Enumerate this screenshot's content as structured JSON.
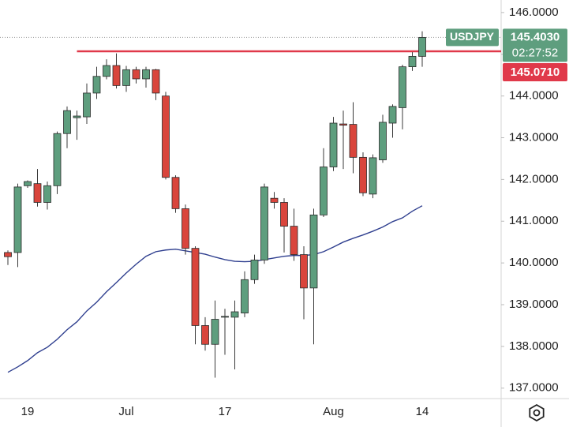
{
  "chart_data": {
    "type": "candlestick",
    "symbol": "USDJPY",
    "countdown": "02:27:52",
    "categories": [
      null,
      null,
      "19",
      null,
      null,
      null,
      null,
      null,
      null,
      null,
      null,
      null,
      "Jul",
      null,
      null,
      null,
      null,
      null,
      null,
      null,
      null,
      null,
      "17",
      null,
      null,
      null,
      null,
      null,
      null,
      null,
      null,
      null,
      null,
      "Aug",
      null,
      null,
      null,
      null,
      null,
      null,
      null,
      null,
      "14"
    ],
    "series": [
      {
        "name": "USDJPY",
        "up_color": "#5e9e7e",
        "down_color": "#d9453c",
        "open": [
          140.25,
          140.25,
          141.85,
          141.9,
          141.45,
          141.85,
          143.1,
          143.48,
          143.5,
          144.07,
          144.47,
          144.73,
          144.25,
          144.63,
          144.41,
          144.63,
          144.0,
          142.05,
          141.3,
          140.35,
          138.5,
          138.05,
          138.7,
          138.7,
          138.8,
          139.6,
          140.07,
          141.55,
          141.45,
          140.88,
          140.2,
          139.4,
          141.15,
          142.3,
          143.33,
          143.32,
          142.53,
          141.65,
          142.47,
          143.35,
          143.72,
          144.7,
          144.95
        ],
        "high": [
          140.3,
          141.9,
          141.98,
          142.25,
          141.95,
          143.15,
          143.75,
          143.65,
          144.3,
          144.7,
          144.88,
          145.02,
          144.72,
          144.7,
          144.7,
          144.65,
          144.1,
          142.1,
          141.4,
          140.4,
          138.7,
          139.1,
          138.9,
          139.1,
          139.8,
          140.2,
          141.9,
          141.7,
          141.55,
          141.3,
          140.4,
          141.3,
          142.75,
          143.5,
          143.65,
          143.85,
          142.65,
          142.6,
          143.55,
          143.8,
          144.75,
          145.05,
          145.55
        ],
        "low": [
          139.95,
          139.9,
          141.8,
          141.35,
          141.28,
          141.65,
          142.75,
          142.95,
          143.33,
          143.93,
          144.4,
          144.18,
          144.1,
          144.3,
          144.2,
          143.9,
          142.0,
          141.2,
          140.2,
          138.05,
          137.9,
          137.25,
          137.8,
          137.45,
          138.7,
          139.5,
          139.98,
          141.3,
          140.25,
          140.05,
          138.65,
          138.05,
          141.1,
          142.2,
          142.25,
          142.15,
          141.6,
          141.55,
          142.4,
          143.0,
          143.2,
          144.6,
          144.7
        ],
        "close": [
          140.15,
          141.82,
          141.95,
          141.45,
          141.85,
          143.1,
          143.65,
          143.52,
          144.07,
          144.47,
          144.73,
          144.25,
          144.63,
          144.41,
          144.63,
          144.07,
          142.05,
          141.3,
          140.35,
          138.5,
          138.05,
          138.65,
          138.72,
          138.83,
          139.6,
          140.07,
          141.82,
          141.45,
          140.88,
          140.2,
          139.4,
          141.15,
          142.3,
          143.35,
          143.3,
          142.53,
          141.68,
          142.52,
          143.37,
          143.75,
          144.7,
          144.95,
          145.403
        ]
      }
    ],
    "moving_average": {
      "color": "#2f3f8f",
      "values": [
        137.38,
        137.51,
        137.66,
        137.85,
        137.98,
        138.17,
        138.4,
        138.59,
        138.85,
        139.06,
        139.31,
        139.53,
        139.76,
        139.97,
        140.16,
        140.27,
        140.31,
        140.33,
        140.29,
        140.25,
        140.21,
        140.14,
        140.08,
        140.04,
        140.03,
        140.04,
        140.08,
        140.12,
        140.16,
        140.18,
        140.18,
        140.2,
        140.27,
        140.38,
        140.5,
        140.59,
        140.67,
        140.76,
        140.86,
        140.99,
        141.08,
        141.24,
        141.37
      ]
    },
    "last_price": {
      "value": 145.403,
      "label": "145.4030",
      "color": "#5e9e7e"
    },
    "resistance": {
      "value": 145.071,
      "label": "145.0710",
      "color": "#e0394a"
    },
    "ylim": [
      136.75,
      146.3
    ],
    "yticks": [
      {
        "value": 137,
        "label": "137.0000"
      },
      {
        "value": 138,
        "label": "138.0000"
      },
      {
        "value": 139,
        "label": "139.0000"
      },
      {
        "value": 140,
        "label": "140.0000"
      },
      {
        "value": 141,
        "label": "141.0000"
      },
      {
        "value": 142,
        "label": "142.0000"
      },
      {
        "value": 143,
        "label": "143.0000"
      },
      {
        "value": 144,
        "label": "144.0000"
      },
      {
        "value": 145,
        "label": "145.0000"
      },
      {
        "value": 146,
        "label": "146.0000"
      }
    ]
  }
}
